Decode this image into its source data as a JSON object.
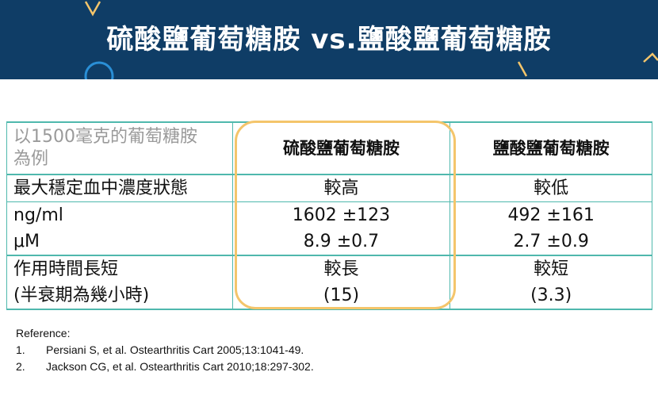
{
  "slide": {
    "title": "硫酸鹽葡萄糖胺 vs.鹽酸鹽葡萄糖胺",
    "colors": {
      "banner": "#0f3d66",
      "table_border": "#4fb8ad",
      "highlight": "#f4c56b",
      "deco_accent": "#f4c56b",
      "deco_circle": "#2a8fd6"
    }
  },
  "table": {
    "header_label": [
      "以1500毫克的葡萄糖胺",
      "為例"
    ],
    "col_sulfate": "硫酸鹽葡萄糖胺",
    "col_hcl": "鹽酸鹽葡萄糖胺",
    "rows": [
      {
        "label": "最大穩定血中濃度狀態",
        "sulfate": "較高",
        "hcl": "較低"
      },
      {
        "label": "ng/ml",
        "sulfate": "1602 ±123",
        "hcl": "492 ±161"
      },
      {
        "label": "μM",
        "sulfate": "8.9 ±0.7",
        "hcl": "2.7 ±0.9"
      },
      {
        "label": "作用時間長短",
        "sulfate": "較長",
        "hcl": "較短"
      },
      {
        "label": "(半衰期為幾小時)",
        "sulfate": "(15)",
        "hcl": "(3.3)"
      }
    ]
  },
  "references": {
    "heading": "Reference:",
    "items": [
      {
        "num": "1.",
        "text": "Persiani S, et al. Ostearthritis Cart 2005;13:1041-49."
      },
      {
        "num": "2.",
        "text": "Jackson CG, et al. Ostearthritis Cart 2010;18:297-302."
      }
    ]
  }
}
